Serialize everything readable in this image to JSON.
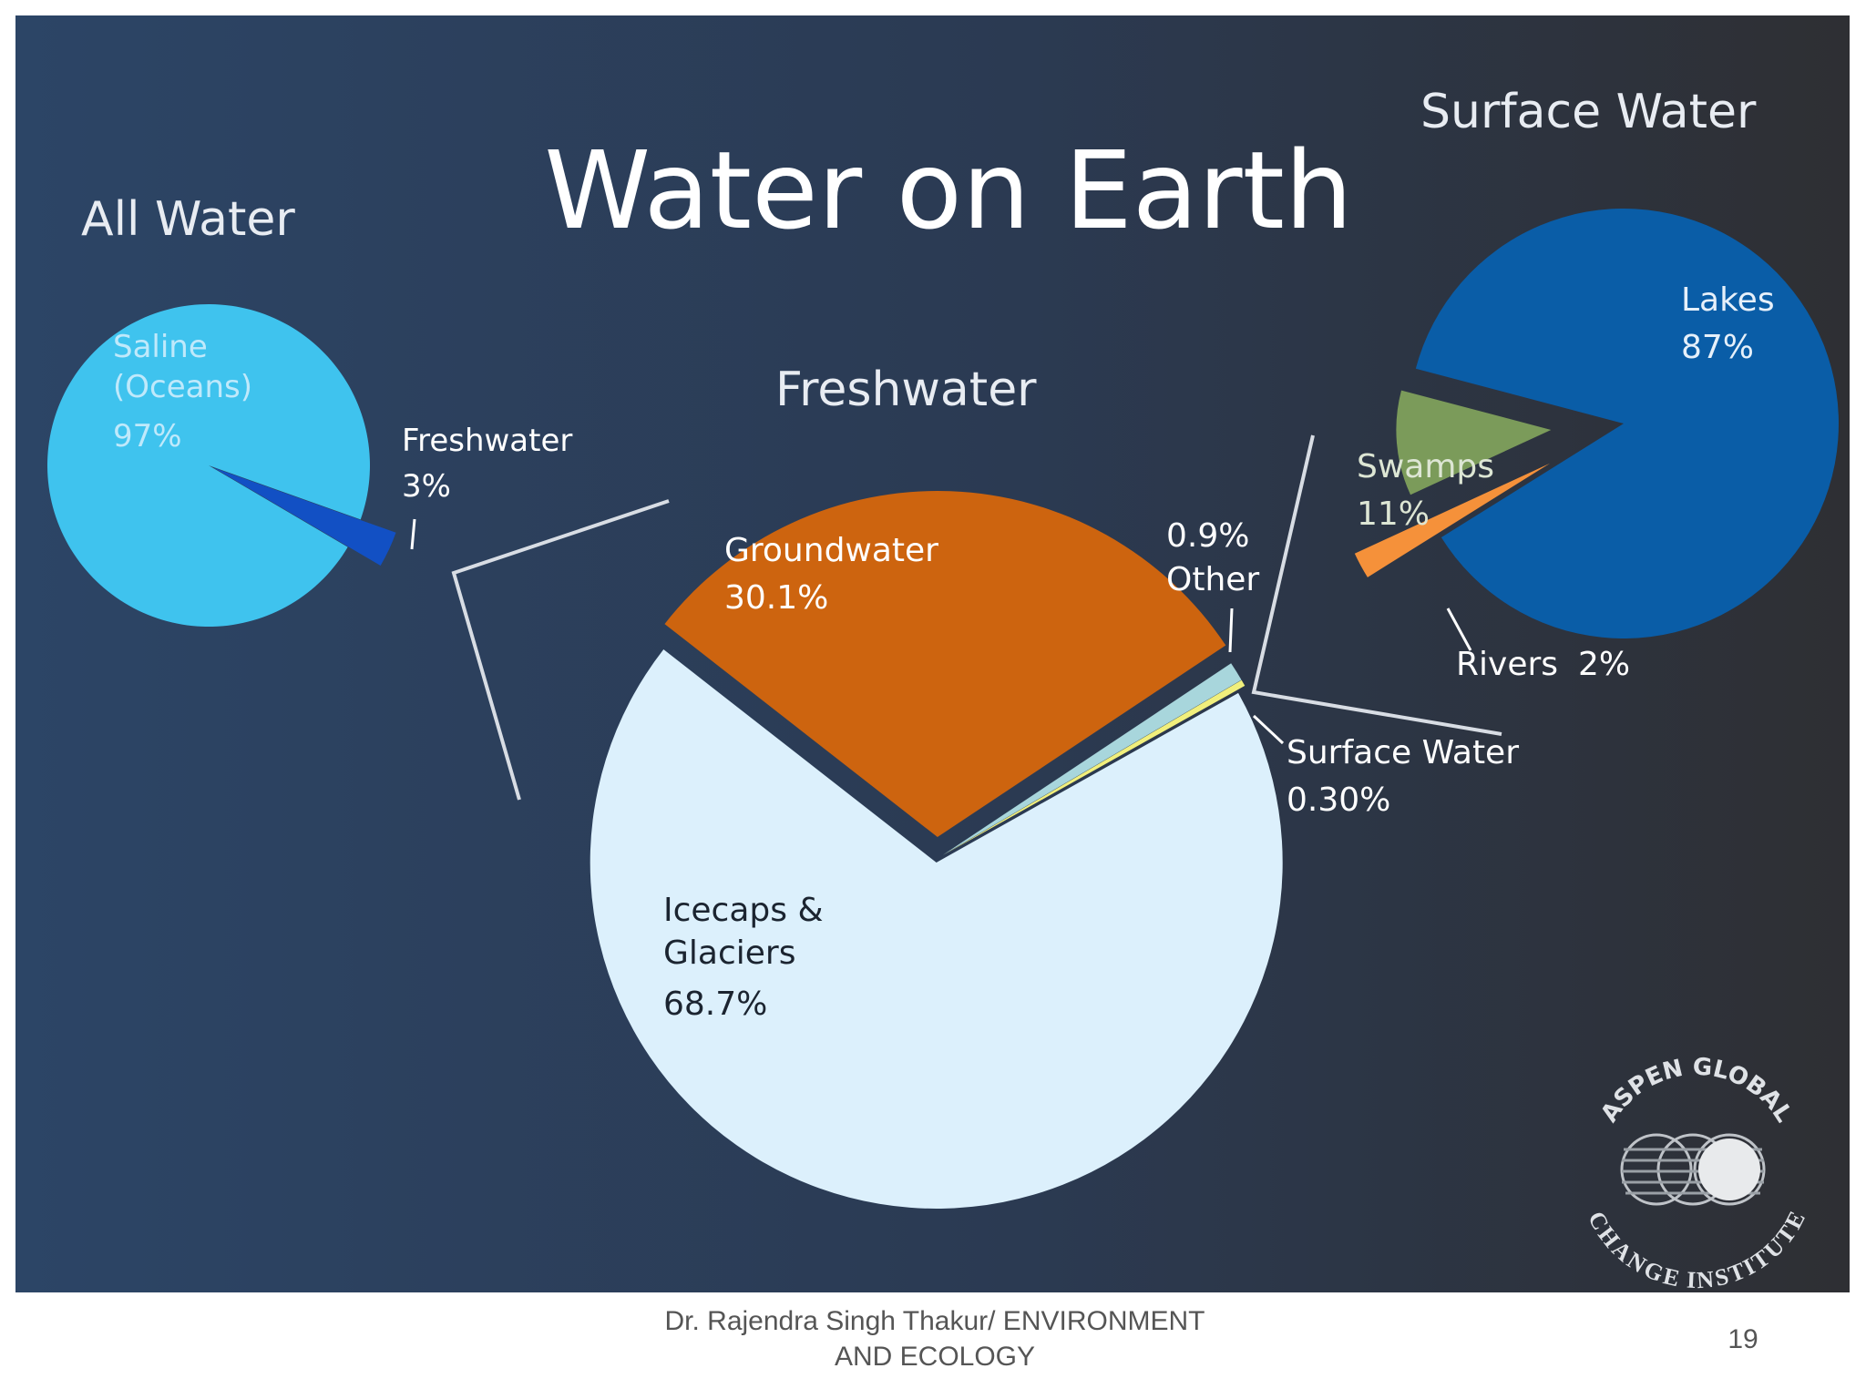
{
  "title": "Water on Earth",
  "chart_data": [
    {
      "type": "pie",
      "title": "All Water",
      "categories": [
        "Saline\n(Oceans)",
        "Freshwater"
      ],
      "values": [
        97,
        3
      ],
      "value_labels": [
        "97%",
        "3%"
      ],
      "colors": [
        "#3fc3ee",
        "#1250c4"
      ]
    },
    {
      "type": "pie",
      "title": "Freshwater",
      "categories": [
        "Groundwater",
        "Other",
        "Surface Water",
        "Icecaps &\nGlaciers"
      ],
      "values": [
        30.1,
        0.9,
        0.3,
        68.7
      ],
      "value_labels": [
        "30.1%",
        "0.9%",
        "0.30%",
        "68.7%"
      ],
      "colors": [
        "#cd640f",
        "#a8d6dc",
        "#f1ef7c",
        "#dcf0fc"
      ]
    },
    {
      "type": "pie",
      "title": "Surface Water",
      "categories": [
        "Rivers",
        "Swamps",
        "Lakes"
      ],
      "values": [
        2,
        11,
        87
      ],
      "value_labels": [
        "2%",
        "11%",
        "87%"
      ],
      "colors": [
        "#f5913a",
        "#7b9b5a",
        "#0a5da7"
      ]
    }
  ],
  "logo": {
    "top": "ASPEN GLOBAL",
    "bottom": "CHANGE INSTITUTE"
  },
  "footer": {
    "author": "Dr. Rajendra Singh Thakur/ ENVIRONMENT\nAND ECOLOGY",
    "page": "19"
  }
}
